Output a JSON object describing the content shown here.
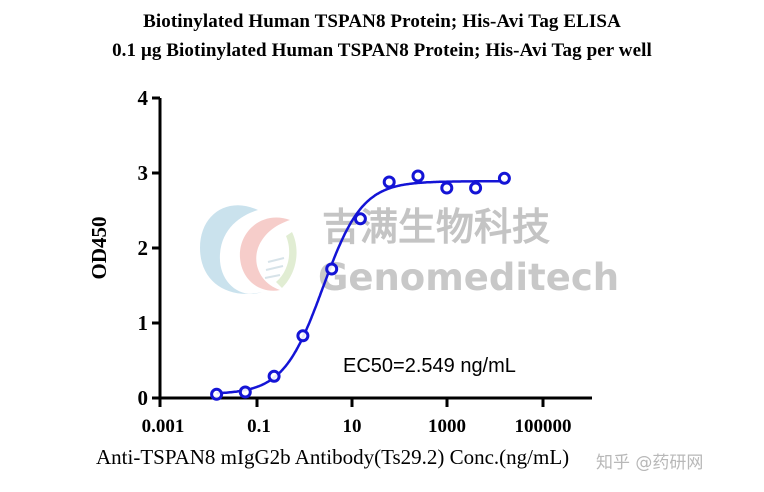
{
  "titles": {
    "line1": "Biotinylated Human TSPAN8 Protein; His-Avi Tag ELISA",
    "line2": "0.1 μg Biotinylated Human TSPAN8 Protein; His-Avi Tag  per well"
  },
  "axes": {
    "ylabel": "OD450",
    "xlabel": "Anti-TSPAN8 mIgG2b Antibody(Ts29.2) Conc.(ng/mL)",
    "yticks": [
      "0",
      "1",
      "2",
      "3",
      "4"
    ],
    "xticks": [
      "0.001",
      "0.1",
      "10",
      "1000",
      "100000"
    ]
  },
  "annotation": "EC50=2.549 ng/mL",
  "watermarks": {
    "cn": "吉满生物科技",
    "en": "Genomeditech",
    "corner": "知乎 @药研网"
  },
  "colors": {
    "series": "#1414d6",
    "axis": "#000000"
  },
  "chart_data": {
    "type": "scatter",
    "title": "Biotinylated Human TSPAN8 Protein; His-Avi Tag ELISA",
    "subtitle": "0.1 μg Biotinylated Human TSPAN8 Protein; His-Avi Tag  per well",
    "xlabel": "Anti-TSPAN8 mIgG2b Antibody(Ts29.2) Conc.(ng/mL)",
    "ylabel": "OD450",
    "xscale": "log",
    "xlim": [
      0.001,
      1000000
    ],
    "ylim": [
      0,
      4
    ],
    "x_ticks": [
      0.001,
      0.1,
      10,
      1000,
      100000
    ],
    "y_ticks": [
      0,
      1,
      2,
      3,
      4
    ],
    "grid": false,
    "legend": null,
    "series": [
      {
        "name": "OD450",
        "x": [
          0.0153,
          0.061,
          0.244,
          0.977,
          3.91,
          15.6,
          62.5,
          250,
          1000,
          4000,
          16000
        ],
        "values": [
          0.05,
          0.08,
          0.29,
          0.83,
          1.72,
          2.39,
          2.88,
          2.96,
          2.8,
          2.8,
          2.93
        ],
        "fit": "4PL sigmoidal",
        "ec50": 2.549
      }
    ],
    "annotations": [
      "EC50=2.549 ng/mL"
    ]
  }
}
